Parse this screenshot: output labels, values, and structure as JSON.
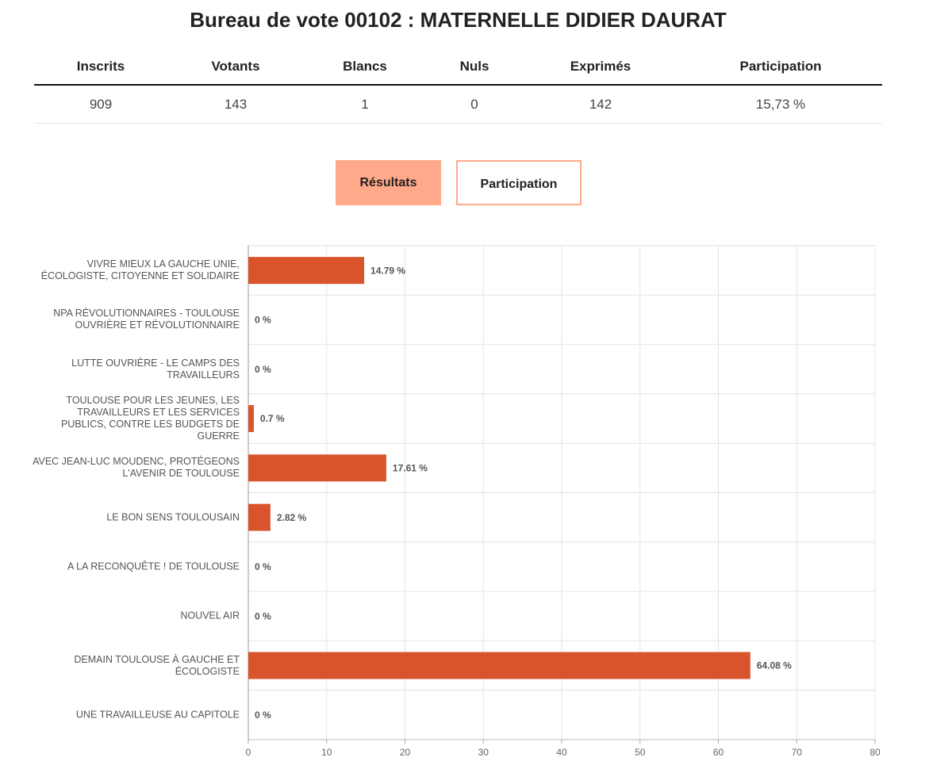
{
  "header": {
    "title": "Bureau de vote 00102 : MATERNELLE DIDIER DAURAT"
  },
  "table": {
    "columns": [
      "Inscrits",
      "Votants",
      "Blancs",
      "Nuls",
      "Exprimés",
      "Participation"
    ],
    "rows": [
      [
        "909",
        "143",
        "1",
        "0",
        "142",
        "15,73 %"
      ]
    ]
  },
  "tabs": [
    "Résultats",
    "Participation"
  ],
  "chart_data": {
    "type": "barh",
    "categories": [
      "VIVRE MIEUX LA GAUCHE UNIE, ÉCOLOGISTE, CITOYENNE ET SOLIDAIRE",
      "NPA RÉVOLUTIONNAIRES - TOULOUSE OUVRIÈRE ET RÉVOLUTIONNAIRE",
      "LUTTE OUVRIÈRE - LE CAMPS DES TRAVAILLEURS",
      "TOULOUSE POUR LES JEUNES, LES TRAVAILLEURS ET LES SERVICES PUBLICS, CONTRE LES BUDGETS DE GUERRE",
      "AVEC JEAN-LUC MOUDENC, PROTÉGEONS L'AVENIR DE TOULOUSE",
      "LE BON SENS TOULOUSAIN",
      "A LA RECONQUÊTE ! DE TOULOUSE",
      "NOUVEL AIR",
      "DEMAIN TOULOUSE À GAUCHE ET ÉCOLOGISTE",
      "UNE TRAVAILLEUSE AU CAPITOLE"
    ],
    "values": [
      14.79,
      0,
      0,
      0.7,
      17.61,
      2.82,
      0,
      0,
      64.08,
      0
    ],
    "value_labels": [
      "14.79 %",
      "0 %",
      "0 %",
      "0.7 %",
      "17.61 %",
      "2.82 %",
      "0 %",
      "0 %",
      "64.08 %",
      "0 %"
    ],
    "color": "#d9532c",
    "xlim": [
      0,
      80
    ],
    "xticks": [
      0,
      10,
      20,
      30,
      40,
      50,
      60,
      70,
      80
    ],
    "grid": true
  }
}
